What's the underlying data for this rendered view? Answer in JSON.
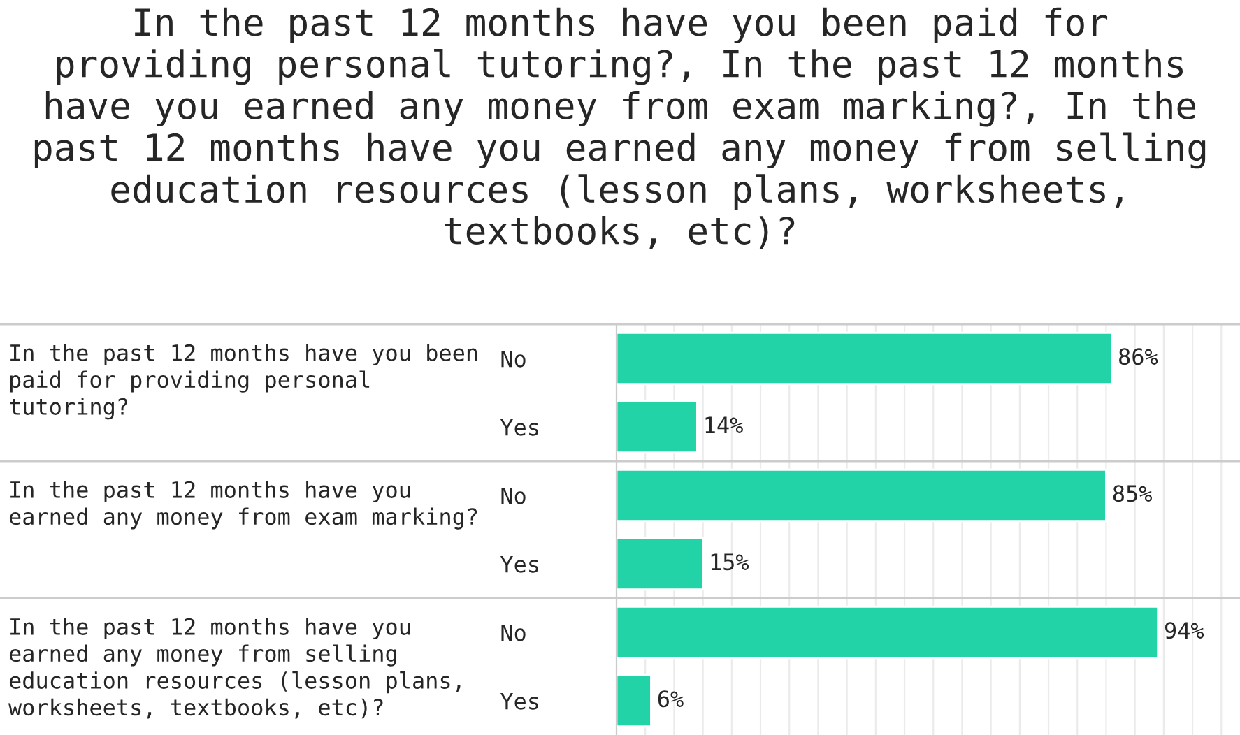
{
  "chart_data": {
    "type": "bar",
    "orientation": "horizontal",
    "title": "In the past 12 months have you been paid for\nproviding personal tutoring?, In the past 12 months\nhave you earned any money from exam marking?, In the\npast 12 months have you earned any money from selling\neducation resources (lesson plans, worksheets,\ntextbooks, etc)?",
    "categories": [
      "No",
      "Yes",
      "No",
      "Yes",
      "No",
      "Yes"
    ],
    "values": [
      86,
      14,
      85,
      15,
      94,
      6
    ],
    "value_labels": [
      "86%",
      "14%",
      "85%",
      "15%",
      "94%",
      "6%"
    ],
    "color": "#21d3a7",
    "annotations": [
      "In the past 12 months have you been\npaid for providing personal\ntutoring?",
      "In the past 12 months have you\nearned any money from exam marking?",
      "In the past 12 months have you\nearned any money from selling\neducation resources (lesson plans,\nworksheets, textbooks, etc)?"
    ],
    "xlim": [
      0,
      108
    ],
    "xticks": [
      {
        "value": 0,
        "label": null
      },
      {
        "value": 5,
        "label": null
      },
      {
        "value": 10,
        "label": null
      },
      {
        "value": 15,
        "label": null
      },
      {
        "value": 20,
        "label": null
      },
      {
        "value": 25,
        "label": null
      },
      {
        "value": 30,
        "label": null
      },
      {
        "value": 35,
        "label": null
      },
      {
        "value": 40,
        "label": null
      },
      {
        "value": 45,
        "label": null
      },
      {
        "value": 50,
        "label": null
      },
      {
        "value": 55,
        "label": null
      },
      {
        "value": 60,
        "label": null
      },
      {
        "value": 65,
        "label": null
      },
      {
        "value": 70,
        "label": null
      },
      {
        "value": 75,
        "label": null
      },
      {
        "value": 80,
        "label": null
      },
      {
        "value": 85,
        "label": null
      },
      {
        "value": 90,
        "label": null
      },
      {
        "value": 95,
        "label": null
      },
      {
        "value": 100,
        "label": null
      },
      {
        "value": 105,
        "label": null
      }
    ],
    "grid": "x",
    "tick_labels": "y"
  }
}
